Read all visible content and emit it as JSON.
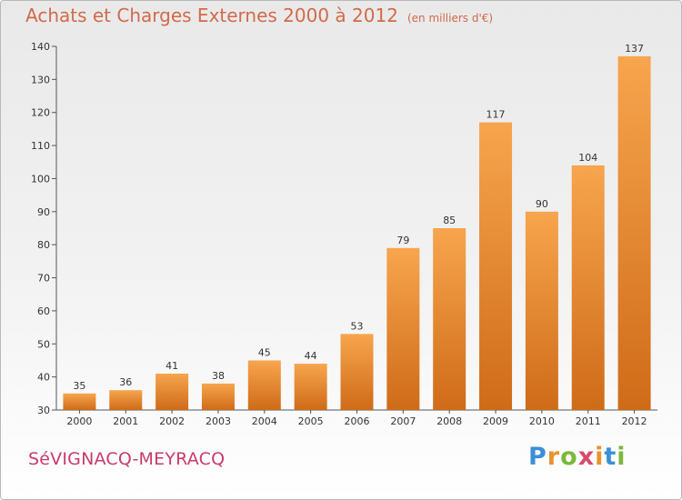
{
  "header": {
    "title": "Achats et Charges Externes 2000 à 2012",
    "subtitle": "(en milliers d'€)"
  },
  "footer": {
    "commune": "SéVIGNACQ-MEYRACQ",
    "logo": "Proxiti"
  },
  "colors": {
    "bar_light": "#f7a54e",
    "bar_dark": "#cf6b18",
    "title": "#d26a4a",
    "commune": "#c83c6b"
  },
  "chart_data": {
    "type": "bar",
    "title": "Achats et Charges Externes 2000 à 2012",
    "subtitle": "(en milliers d'€)",
    "categories": [
      "2000",
      "2001",
      "2002",
      "2003",
      "2004",
      "2005",
      "2006",
      "2007",
      "2008",
      "2009",
      "2010",
      "2011",
      "2012"
    ],
    "values": [
      35,
      36,
      41,
      38,
      45,
      44,
      53,
      79,
      85,
      117,
      90,
      104,
      137
    ],
    "xlabel": "",
    "ylabel": "",
    "ylim": [
      30,
      140
    ],
    "yticks": [
      30,
      40,
      50,
      60,
      70,
      80,
      90,
      100,
      110,
      120,
      130,
      140
    ],
    "grid": false,
    "legend": "none"
  }
}
